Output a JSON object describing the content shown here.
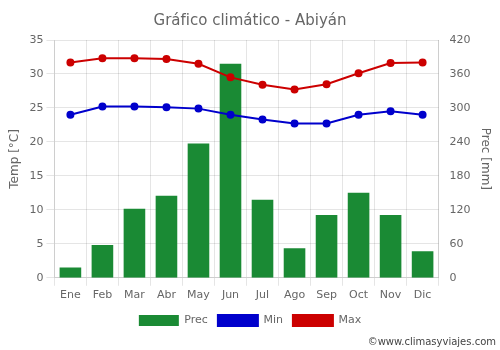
{
  "chart_data": {
    "type": "bar",
    "title": "Gráfico climático - Abiyán",
    "categories": [
      "Ene",
      "Feb",
      "Mar",
      "Abr",
      "May",
      "Jun",
      "Jul",
      "Ago",
      "Sep",
      "Oct",
      "Nov",
      "Dic"
    ],
    "series": [
      {
        "name": "Prec",
        "type": "bar",
        "axis": "y2",
        "color": "#1a8a34",
        "values": [
          18,
          58,
          122,
          145,
          237,
          378,
          138,
          52,
          111,
          150,
          111,
          47
        ]
      },
      {
        "name": "Min",
        "type": "line",
        "color": "#0000cc",
        "marker": "circle",
        "line_style": "solid",
        "values": [
          24.0,
          25.2,
          25.2,
          25.1,
          24.9,
          24.0,
          23.3,
          22.7,
          22.7,
          24.0,
          24.5,
          24.0
        ]
      },
      {
        "name": "Max",
        "type": "line",
        "color": "#cc0000",
        "marker": "circle",
        "line_style": "solid",
        "values": [
          31.7,
          32.3,
          32.3,
          32.2,
          31.5,
          29.5,
          28.4,
          27.7,
          28.5,
          30.1,
          31.6,
          31.7
        ]
      }
    ],
    "ylabel": "Temp [°C]",
    "y2label": "Prec [mm]",
    "ylim": [
      0,
      35
    ],
    "yticks": [
      0,
      5,
      10,
      15,
      20,
      25,
      30,
      35
    ],
    "y2lim": [
      0,
      420
    ],
    "y2ticks": [
      0,
      60,
      120,
      180,
      240,
      300,
      360,
      420
    ],
    "grid": true,
    "legend": "bottom",
    "annotations": [
      "©www.climasyviajes.com"
    ]
  }
}
